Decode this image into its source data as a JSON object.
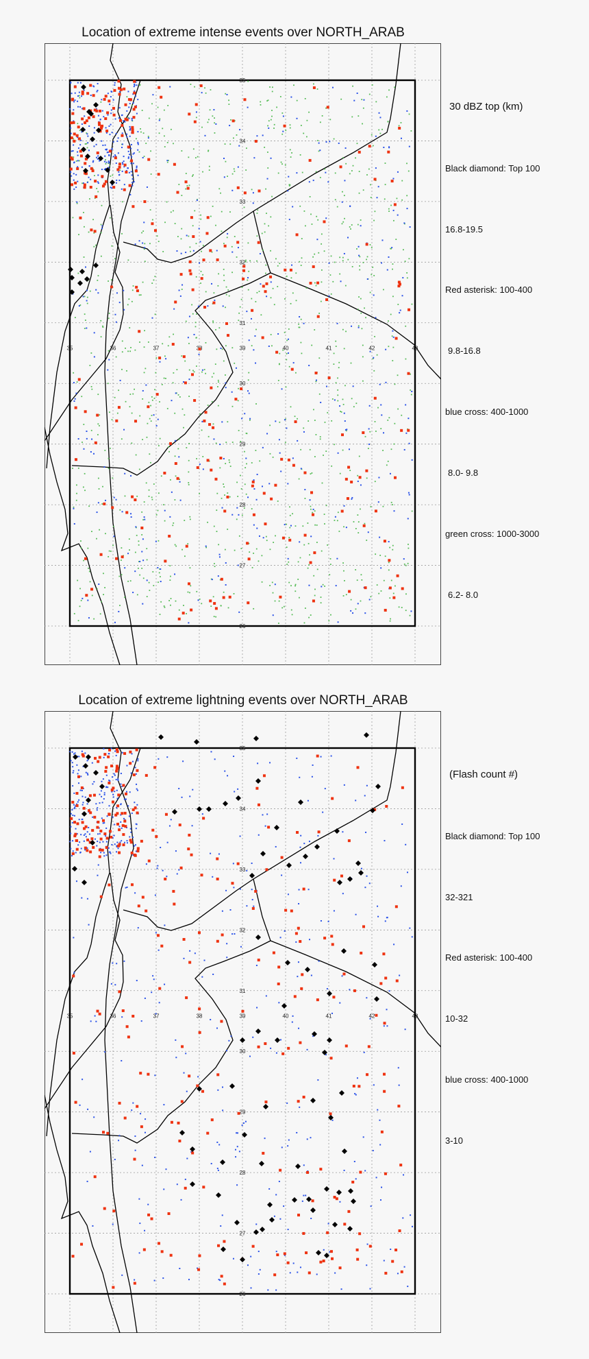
{
  "panels": [
    {
      "title": "Location of extreme intense events over NORTH_ARAB",
      "legend": {
        "heading": "30 dBZ top (km)",
        "entries": [
          {
            "marker": "Black diamond: Top 100",
            "range": "16.8-19.5"
          },
          {
            "marker": "Red asterisk: 100-400",
            "range": "9.8-16.8"
          },
          {
            "marker": "blue cross: 400-1000",
            "range": "8.0- 9.8"
          },
          {
            "marker": "green cross: 1000-3000",
            "range": "6.2- 8.0"
          }
        ]
      }
    },
    {
      "title": "Location of extreme lightning  events over NORTH_ARAB",
      "legend": {
        "heading": "(Flash count #)",
        "entries": [
          {
            "marker": "Black diamond: Top 100",
            "range": "32-321"
          },
          {
            "marker": "Red asterisk: 100-400",
            "range": "10-32"
          },
          {
            "marker": "blue cross: 400-1000",
            "range": "3-10"
          }
        ]
      }
    }
  ],
  "map": {
    "lon_range": [
      35,
      43
    ],
    "lat_range": [
      26,
      35
    ],
    "lon_labels": [
      "35",
      "36",
      "37",
      "38",
      "39",
      "40",
      "41",
      "42",
      "43"
    ],
    "lat_labels": [
      "35",
      "34",
      "33",
      "32",
      "31",
      "30",
      "29",
      "28",
      "27",
      "26"
    ],
    "colors": {
      "background": "#f7f7f7",
      "frame": "#000000",
      "grid": "#9a9a9a",
      "diamond": "#000000",
      "asterisk": "#ee3311",
      "blue": "#2a52e8",
      "green": "#55bb55"
    }
  }
}
